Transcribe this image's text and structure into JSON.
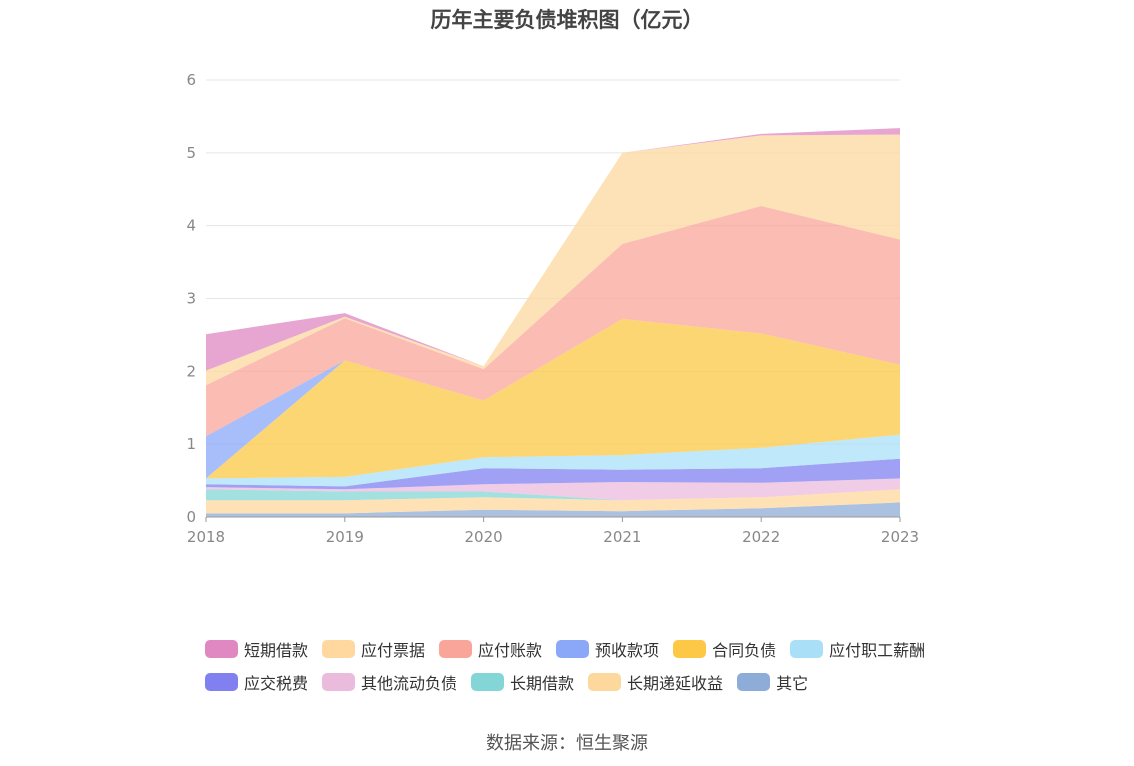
{
  "title": "历年主要负债堆积图（亿元）",
  "source": "数据来源：恒生聚源",
  "chart_data": {
    "type": "area",
    "stacked": true,
    "title": "历年主要负债堆积图（亿元）",
    "xlabel": "",
    "ylabel": "",
    "x": [
      "2018",
      "2019",
      "2020",
      "2021",
      "2022",
      "2023"
    ],
    "ylim": [
      0,
      6
    ],
    "yticks": [
      "0",
      "1",
      "2",
      "3",
      "4",
      "5",
      "6"
    ],
    "grid": true,
    "legend_position": "bottom",
    "series": [
      {
        "name": "其它",
        "color": "#8eacd8",
        "values": [
          0.05,
          0.05,
          0.1,
          0.08,
          0.12,
          0.2
        ]
      },
      {
        "name": "长期递延收益",
        "color": "#fdd89d",
        "values": [
          0.18,
          0.18,
          0.17,
          0.15,
          0.15,
          0.18
        ]
      },
      {
        "name": "长期借款",
        "color": "#84d6d6",
        "values": [
          0.15,
          0.12,
          0.08,
          0.0,
          0.0,
          0.0
        ]
      },
      {
        "name": "其他流动负债",
        "color": "#ebbbdd",
        "values": [
          0.03,
          0.03,
          0.1,
          0.25,
          0.2,
          0.15
        ]
      },
      {
        "name": "应交税费",
        "color": "#8080f0",
        "values": [
          0.04,
          0.04,
          0.22,
          0.17,
          0.2,
          0.27
        ]
      },
      {
        "name": "应付职工薪酬",
        "color": "#a9e0f8",
        "values": [
          0.08,
          0.13,
          0.15,
          0.2,
          0.28,
          0.33
        ]
      },
      {
        "name": "合同负债",
        "color": "#fcc845",
        "values": [
          0.0,
          1.6,
          0.78,
          1.87,
          1.57,
          0.96
        ]
      },
      {
        "name": "预收款项",
        "color": "#8ba8f8",
        "values": [
          0.58,
          0.0,
          0.0,
          0.0,
          0.0,
          0.0
        ]
      },
      {
        "name": "应付账款",
        "color": "#f9a59a",
        "values": [
          0.7,
          0.58,
          0.43,
          1.03,
          1.75,
          1.72
        ]
      },
      {
        "name": "应付票据",
        "color": "#fed89f",
        "values": [
          0.2,
          0.02,
          0.04,
          1.25,
          0.97,
          1.44
        ]
      },
      {
        "name": "短期借款",
        "color": "#df88c2",
        "values": [
          0.5,
          0.05,
          0.0,
          0.0,
          0.02,
          0.09
        ]
      }
    ]
  },
  "legend": {
    "rows": [
      [
        {
          "label": "短期借款",
          "color": "#df88c2"
        },
        {
          "label": "应付票据",
          "color": "#fed89f"
        },
        {
          "label": "应付账款",
          "color": "#f9a59a"
        },
        {
          "label": "预收款项",
          "color": "#8ba8f8"
        },
        {
          "label": "合同负债",
          "color": "#fcc845"
        },
        {
          "label": "应付职工薪酬",
          "color": "#a9e0f8"
        }
      ],
      [
        {
          "label": "应交税费",
          "color": "#8080f0"
        },
        {
          "label": "其他流动负债",
          "color": "#ebbbdd"
        },
        {
          "label": "长期借款",
          "color": "#84d6d6"
        },
        {
          "label": "长期递延收益",
          "color": "#fdd89d"
        },
        {
          "label": "其它",
          "color": "#8eacd8"
        }
      ]
    ]
  }
}
